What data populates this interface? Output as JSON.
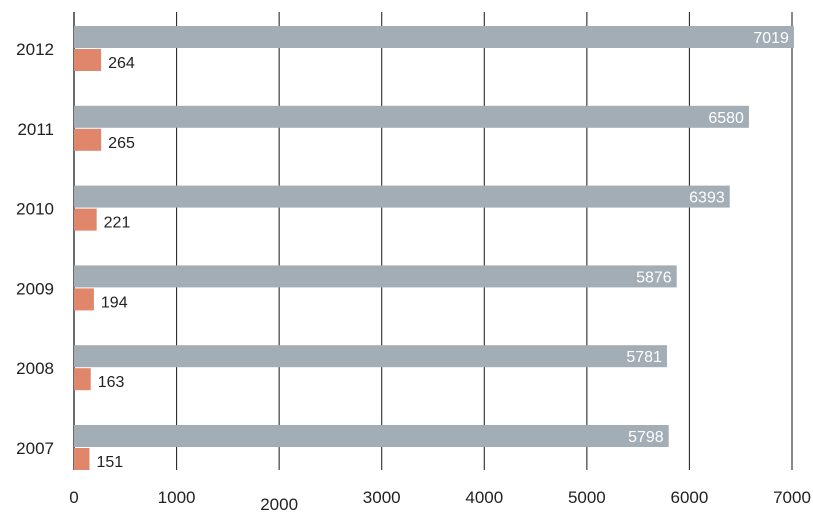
{
  "chart_data": {
    "type": "bar",
    "orientation": "horizontal",
    "categories": [
      "2012",
      "2011",
      "2010",
      "2009",
      "2008",
      "2007"
    ],
    "series": [
      {
        "values": [
          7019,
          6580,
          6393,
          5876,
          5781,
          5798
        ],
        "color": "#a3adb5"
      },
      {
        "values": [
          264,
          265,
          221,
          194,
          163,
          151
        ],
        "color": "#e0866b"
      }
    ],
    "x_ticks": [
      "0",
      "1000",
      "2000",
      "3000",
      "4000",
      "5000",
      "6000",
      "7000"
    ],
    "xlim": [
      0,
      7000
    ],
    "grid": "vertical",
    "legend": "none",
    "title": "",
    "xlabel": "",
    "ylabel": ""
  }
}
